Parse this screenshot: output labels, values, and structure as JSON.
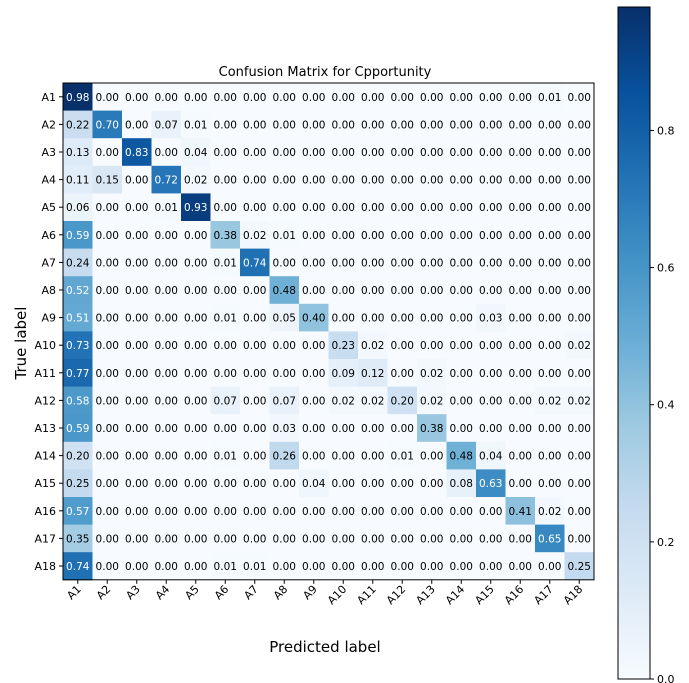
{
  "chart_data": {
    "type": "heatmap",
    "title": "Confusion Matrix for Cpportunity",
    "xlabel": "Predicted label",
    "ylabel": "True label",
    "x_categories": [
      "A1",
      "A2",
      "A3",
      "A4",
      "A5",
      "A6",
      "A7",
      "A8",
      "A9",
      "A10",
      "A11",
      "A12",
      "A13",
      "A14",
      "A15",
      "A16",
      "A17",
      "A18"
    ],
    "y_categories": [
      "A1",
      "A2",
      "A3",
      "A4",
      "A5",
      "A6",
      "A7",
      "A8",
      "A9",
      "A10",
      "A11",
      "A12",
      "A13",
      "A14",
      "A15",
      "A16",
      "A17",
      "A18"
    ],
    "values": [
      [
        0.98,
        0.0,
        0.0,
        0.0,
        0.0,
        0.0,
        0.0,
        0.0,
        0.0,
        0.0,
        0.0,
        0.0,
        0.0,
        0.0,
        0.0,
        0.0,
        0.01,
        0.0
      ],
      [
        0.22,
        0.7,
        0.0,
        0.07,
        0.01,
        0.0,
        0.0,
        0.0,
        0.0,
        0.0,
        0.0,
        0.0,
        0.0,
        0.0,
        0.0,
        0.0,
        0.0,
        0.0
      ],
      [
        0.13,
        0.0,
        0.83,
        0.0,
        0.04,
        0.0,
        0.0,
        0.0,
        0.0,
        0.0,
        0.0,
        0.0,
        0.0,
        0.0,
        0.0,
        0.0,
        0.0,
        0.0
      ],
      [
        0.11,
        0.15,
        0.0,
        0.72,
        0.02,
        0.0,
        0.0,
        0.0,
        0.0,
        0.0,
        0.0,
        0.0,
        0.0,
        0.0,
        0.0,
        0.0,
        0.0,
        0.0
      ],
      [
        0.06,
        0.0,
        0.0,
        0.01,
        0.93,
        0.0,
        0.0,
        0.0,
        0.0,
        0.0,
        0.0,
        0.0,
        0.0,
        0.0,
        0.0,
        0.0,
        0.0,
        0.0
      ],
      [
        0.59,
        0.0,
        0.0,
        0.0,
        0.0,
        0.38,
        0.02,
        0.01,
        0.0,
        0.0,
        0.0,
        0.0,
        0.0,
        0.0,
        0.0,
        0.0,
        0.0,
        0.0
      ],
      [
        0.24,
        0.0,
        0.0,
        0.0,
        0.0,
        0.01,
        0.74,
        0.0,
        0.0,
        0.0,
        0.0,
        0.0,
        0.0,
        0.0,
        0.0,
        0.0,
        0.0,
        0.0
      ],
      [
        0.52,
        0.0,
        0.0,
        0.0,
        0.0,
        0.0,
        0.0,
        0.48,
        0.0,
        0.0,
        0.0,
        0.0,
        0.0,
        0.0,
        0.0,
        0.0,
        0.0,
        0.0
      ],
      [
        0.51,
        0.0,
        0.0,
        0.0,
        0.0,
        0.01,
        0.0,
        0.05,
        0.4,
        0.0,
        0.0,
        0.0,
        0.0,
        0.0,
        0.03,
        0.0,
        0.0,
        0.0
      ],
      [
        0.73,
        0.0,
        0.0,
        0.0,
        0.0,
        0.0,
        0.0,
        0.0,
        0.0,
        0.23,
        0.02,
        0.0,
        0.0,
        0.0,
        0.0,
        0.0,
        0.0,
        0.02
      ],
      [
        0.77,
        0.0,
        0.0,
        0.0,
        0.0,
        0.0,
        0.0,
        0.0,
        0.0,
        0.09,
        0.12,
        0.0,
        0.02,
        0.0,
        0.0,
        0.0,
        0.0,
        0.0
      ],
      [
        0.58,
        0.0,
        0.0,
        0.0,
        0.0,
        0.07,
        0.0,
        0.07,
        0.0,
        0.02,
        0.02,
        0.2,
        0.02,
        0.0,
        0.0,
        0.0,
        0.02,
        0.02
      ],
      [
        0.59,
        0.0,
        0.0,
        0.0,
        0.0,
        0.0,
        0.0,
        0.03,
        0.0,
        0.0,
        0.0,
        0.0,
        0.38,
        0.0,
        0.0,
        0.0,
        0.0,
        0.0
      ],
      [
        0.2,
        0.0,
        0.0,
        0.0,
        0.0,
        0.01,
        0.0,
        0.26,
        0.0,
        0.0,
        0.0,
        0.01,
        0.0,
        0.48,
        0.04,
        0.0,
        0.0,
        0.0
      ],
      [
        0.25,
        0.0,
        0.0,
        0.0,
        0.0,
        0.0,
        0.0,
        0.0,
        0.04,
        0.0,
        0.0,
        0.0,
        0.0,
        0.08,
        0.63,
        0.0,
        0.0,
        0.0
      ],
      [
        0.57,
        0.0,
        0.0,
        0.0,
        0.0,
        0.0,
        0.0,
        0.0,
        0.0,
        0.0,
        0.0,
        0.0,
        0.0,
        0.0,
        0.0,
        0.41,
        0.02,
        0.0
      ],
      [
        0.35,
        0.0,
        0.0,
        0.0,
        0.0,
        0.0,
        0.0,
        0.0,
        0.0,
        0.0,
        0.0,
        0.0,
        0.0,
        0.0,
        0.0,
        0.0,
        0.65,
        0.0
      ],
      [
        0.74,
        0.0,
        0.0,
        0.0,
        0.0,
        0.01,
        0.01,
        0.0,
        0.0,
        0.0,
        0.0,
        0.0,
        0.0,
        0.0,
        0.0,
        0.0,
        0.0,
        0.25
      ]
    ],
    "colorbar": {
      "ticks": [
        "0.0",
        "0.2",
        "0.4",
        "0.6",
        "0.8"
      ],
      "tick_values": [
        0.0,
        0.2,
        0.4,
        0.6,
        0.8
      ],
      "range": [
        0.0,
        0.98
      ],
      "colormap": "Blues"
    },
    "grid": false,
    "legend": "colorbar-right"
  }
}
